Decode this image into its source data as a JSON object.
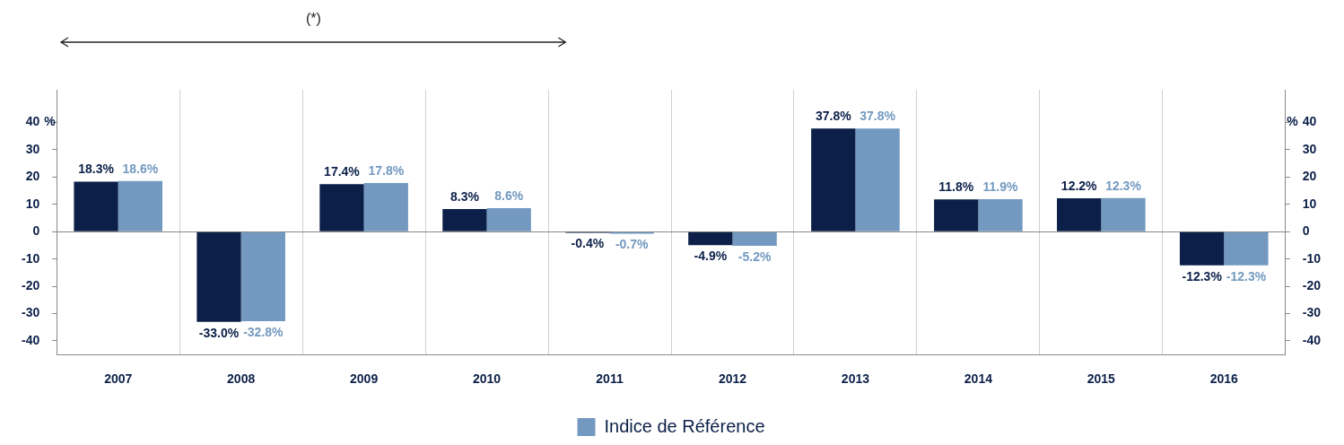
{
  "chart_data": {
    "type": "bar",
    "categories": [
      "2007",
      "2008",
      "2009",
      "2010",
      "2011",
      "2012",
      "2013",
      "2014",
      "2015",
      "2016"
    ],
    "series": [
      {
        "color": "#0b1f48",
        "values": [
          18.3,
          -33.0,
          17.4,
          8.3,
          -0.4,
          -4.9,
          37.8,
          11.8,
          12.2,
          -12.3
        ],
        "value_labels": [
          "18.3%",
          "-33.0%",
          "17.4%",
          "8.3%",
          "-0.4%",
          "-4.9%",
          "37.8%",
          "11.8%",
          "12.2%",
          "-12.3%"
        ]
      },
      {
        "name": "Indice de Référence",
        "color": "#7399c0",
        "values": [
          18.6,
          -32.8,
          17.8,
          8.6,
          -0.7,
          -5.2,
          37.8,
          11.9,
          12.3,
          -12.3
        ],
        "value_labels": [
          "18.6%",
          "-32.8%",
          "17.8%",
          "8.6%",
          "-0.7%",
          "-5.2%",
          "37.8%",
          "11.9%",
          "12.3%",
          "-12.3%"
        ]
      }
    ],
    "ylim": [
      -45,
      52
    ],
    "yticks": [
      -40,
      -30,
      -20,
      -10,
      0,
      10,
      20,
      30,
      40
    ],
    "y2lim": [
      -45,
      52
    ],
    "y2ticks": [
      -40,
      -30,
      -20,
      -10,
      0,
      10,
      20,
      30,
      40
    ],
    "ylabel": "%",
    "y2label": "%",
    "annotations": [
      "(*)"
    ],
    "grid": "x",
    "legend": "bottom"
  }
}
